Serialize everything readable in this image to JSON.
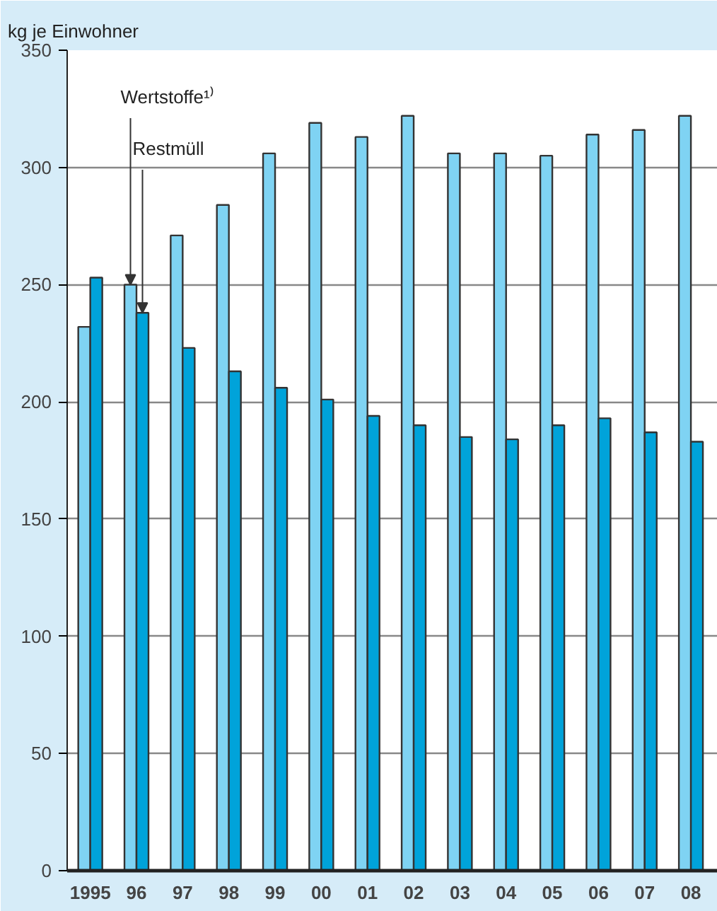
{
  "chart_data": {
    "type": "bar",
    "ylabel": "kg je Einwohner",
    "categories": [
      "1995",
      "96",
      "97",
      "98",
      "99",
      "00",
      "01",
      "02",
      "03",
      "04",
      "05",
      "06",
      "07",
      "08"
    ],
    "series": [
      {
        "name": "Wertstoffe¹⁾",
        "color": "#7fd3f3",
        "values": [
          232,
          250,
          271,
          284,
          306,
          319,
          313,
          322,
          306,
          306,
          305,
          314,
          316,
          322
        ]
      },
      {
        "name": "Restmüll",
        "color": "#00a3da",
        "values": [
          253,
          238,
          223,
          213,
          206,
          201,
          194,
          190,
          185,
          184,
          190,
          193,
          187,
          183
        ]
      }
    ],
    "ylim": [
      0,
      350
    ],
    "yticks": [
      0,
      50,
      100,
      150,
      200,
      250,
      300,
      350
    ],
    "grid": "y"
  }
}
